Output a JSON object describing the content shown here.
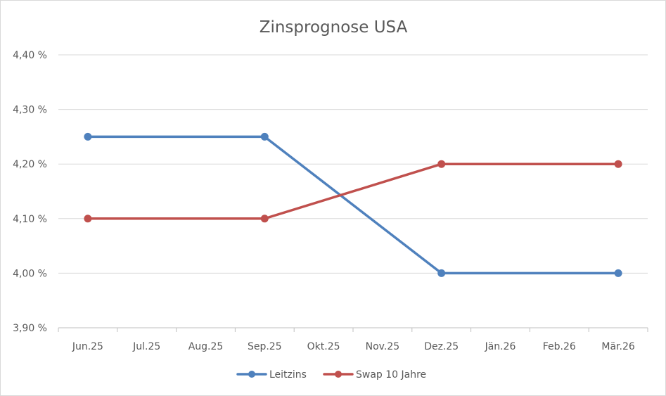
{
  "chart_data": {
    "type": "line",
    "title": "Zinsprognose USA",
    "xlabel": "",
    "ylabel": "",
    "categories": [
      "Jun.25",
      "Jul.25",
      "Aug.25",
      "Sep.25",
      "Okt.25",
      "Nov.25",
      "Dez.25",
      "Jän.26",
      "Feb.26",
      "Mär.26"
    ],
    "yticks": [
      "3,90 %",
      "4,00 %",
      "4,10 %",
      "4,20 %",
      "4,30 %",
      "4,40 %"
    ],
    "ylim": [
      3.9,
      4.4
    ],
    "grid": true,
    "legend_position": "bottom",
    "series": [
      {
        "name": "Leitzins",
        "color": "#4f81bd",
        "points": [
          {
            "x": "Jun.25",
            "y": 4.25
          },
          {
            "x": "Sep.25",
            "y": 4.25
          },
          {
            "x": "Dez.25",
            "y": 4.0
          },
          {
            "x": "Mär.26",
            "y": 4.0
          }
        ]
      },
      {
        "name": "Swap 10 Jahre",
        "color": "#c0504d",
        "points": [
          {
            "x": "Jun.25",
            "y": 4.1
          },
          {
            "x": "Sep.25",
            "y": 4.1
          },
          {
            "x": "Dez.25",
            "y": 4.2
          },
          {
            "x": "Mär.26",
            "y": 4.2
          }
        ]
      }
    ]
  }
}
